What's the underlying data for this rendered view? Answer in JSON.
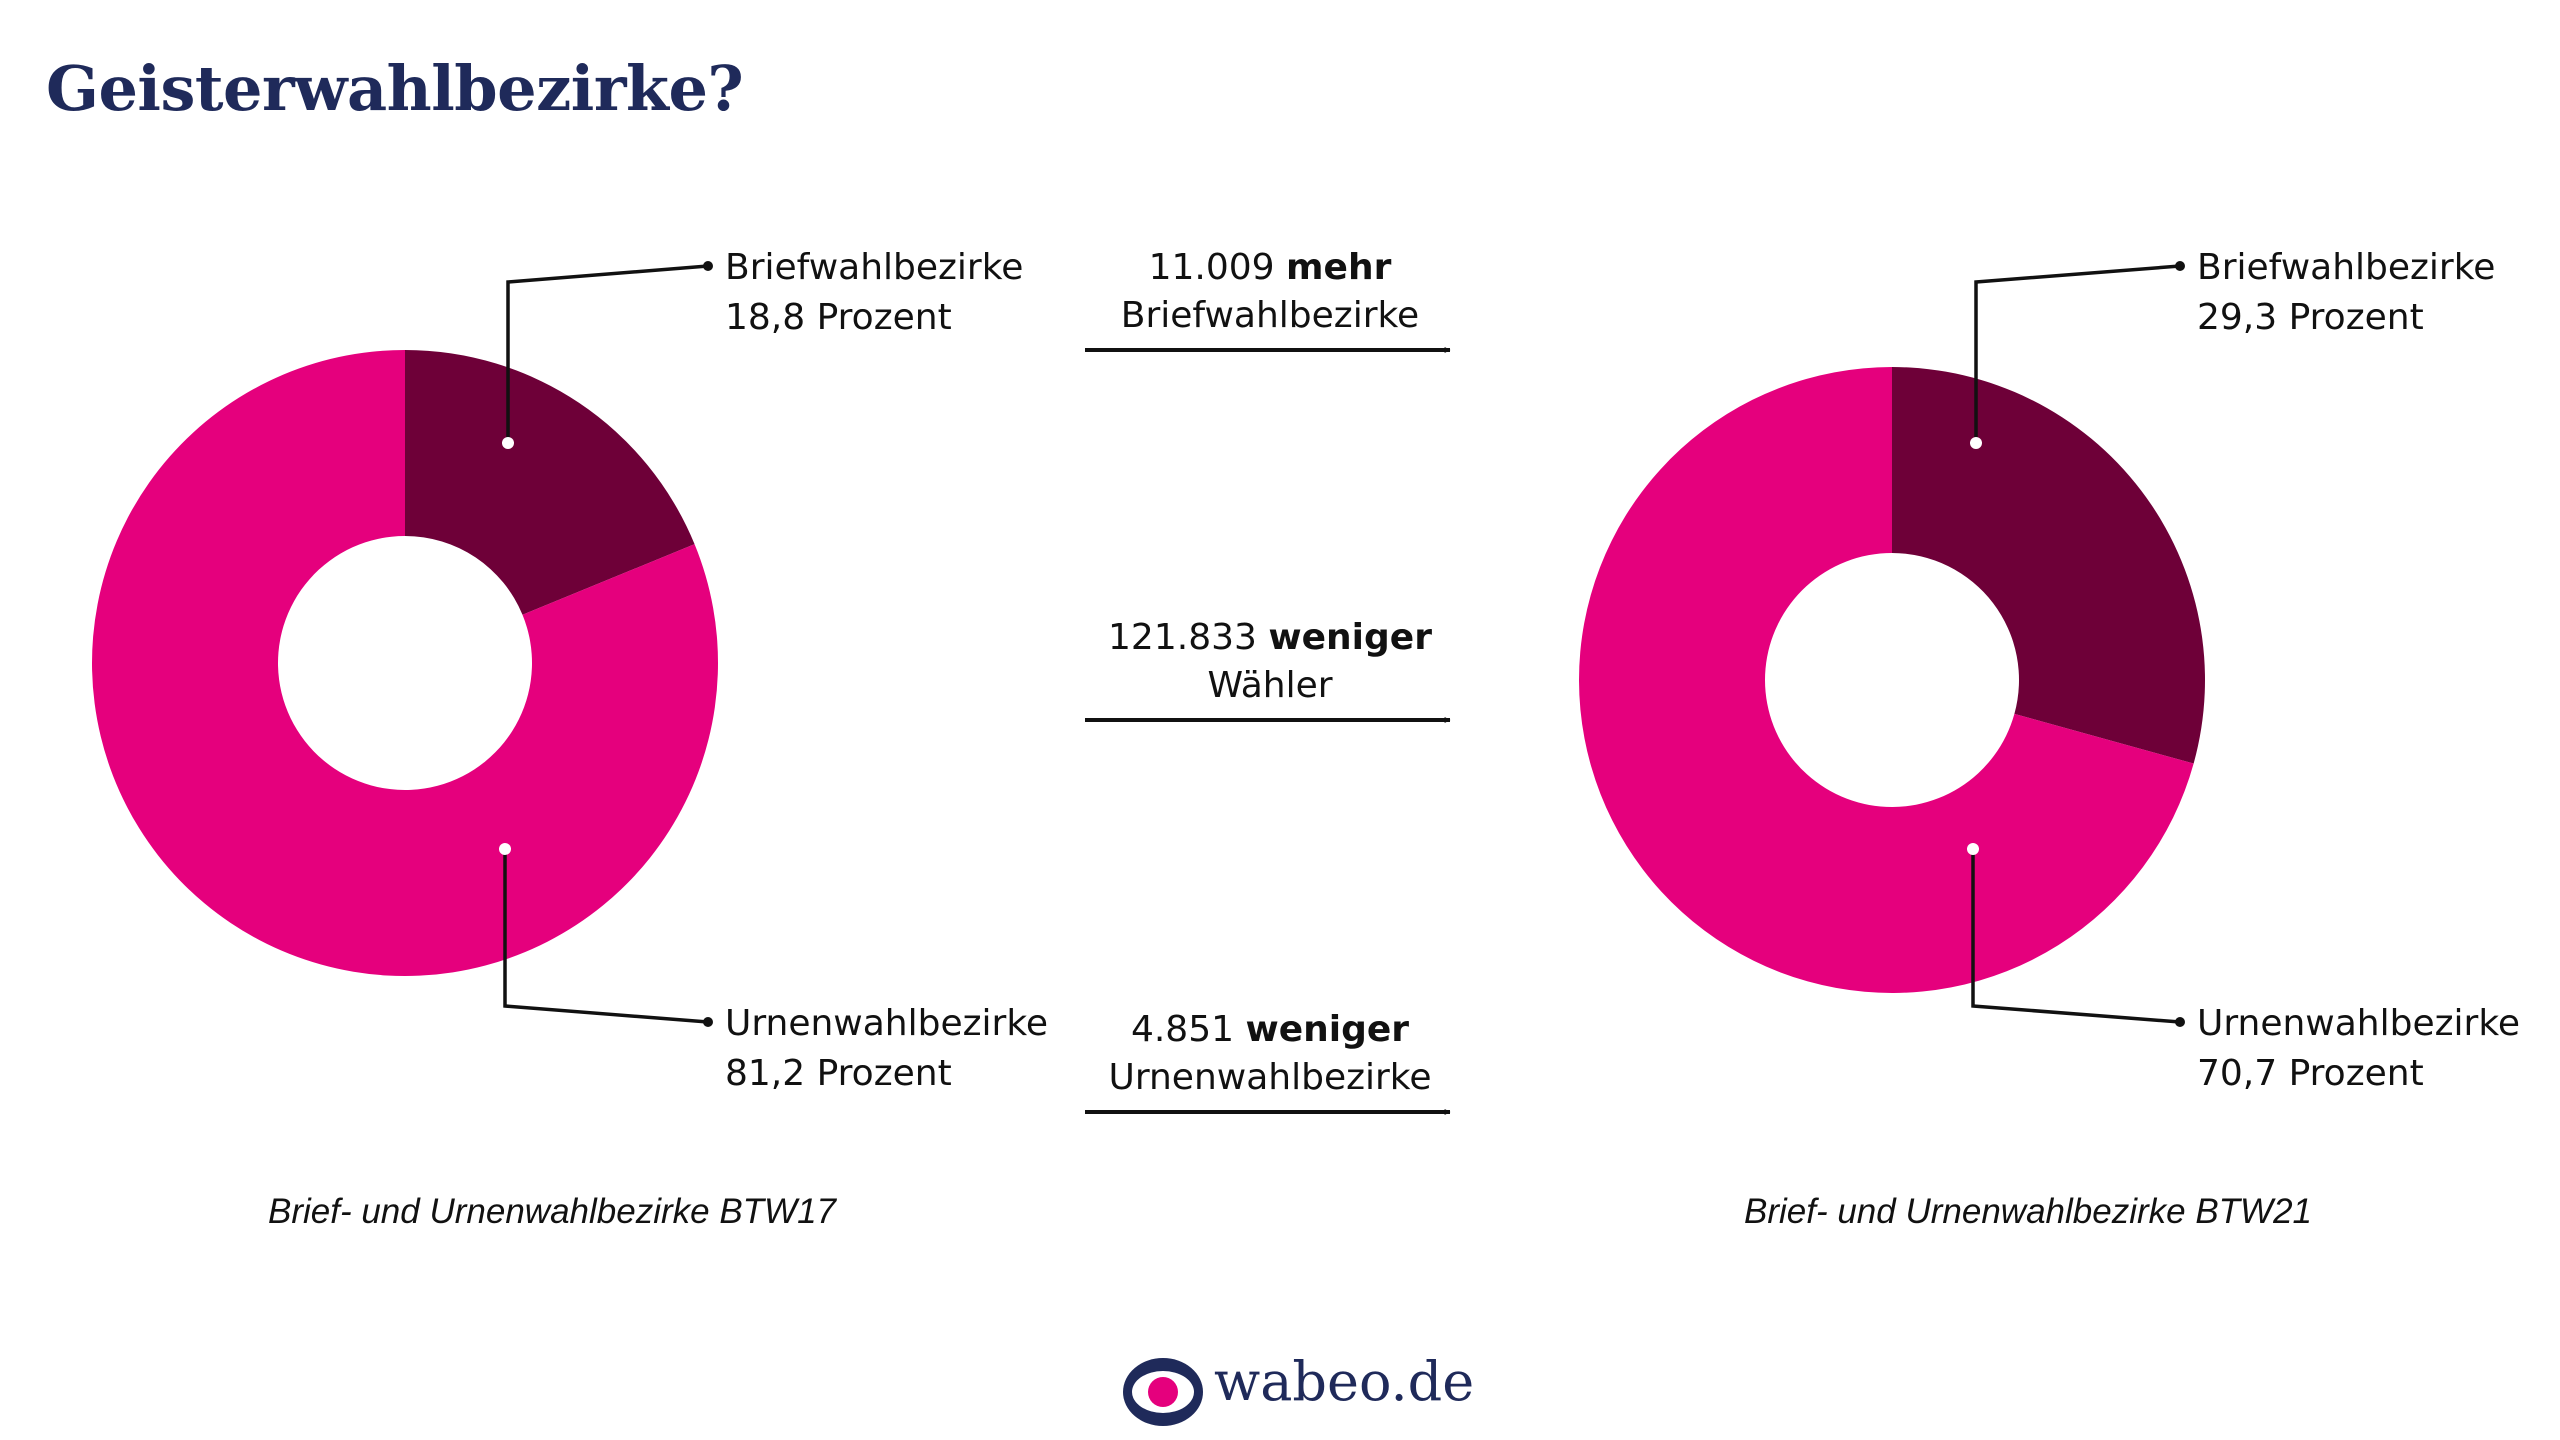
{
  "title": "Geisterwahlbezirke?",
  "colors": {
    "brief": "#6e0038",
    "urne": "#e5007d",
    "title": "#1f2a5a",
    "line": "#111111"
  },
  "chart_data": [
    {
      "type": "pie",
      "title": "Brief- und Urnenwahlbezirke BTW17",
      "categories": [
        "Briefwahlbezirke",
        "Urnenwahlbezirke"
      ],
      "values": [
        18.8,
        81.2
      ],
      "labels": [
        {
          "name": "Briefwahlbezirke",
          "value": "18,8 Prozent"
        },
        {
          "name": "Urnenwahlbezirke",
          "value": "81,2 Prozent"
        }
      ]
    },
    {
      "type": "pie",
      "title": "Brief- und Urnenwahlbezirke BTW21",
      "categories": [
        "Briefwahlbezirke",
        "Urnenwahlbezirke"
      ],
      "values": [
        29.3,
        70.7
      ],
      "labels": [
        {
          "name": "Briefwahlbezirke",
          "value": "29,3 Prozent"
        },
        {
          "name": "Urnenwahlbezirke",
          "value": "70,7 Prozent"
        }
      ]
    }
  ],
  "changes": [
    {
      "number": "11.009",
      "direction": "mehr",
      "subject": "Briefwahlbezirke"
    },
    {
      "number": "121.833",
      "direction": "weniger",
      "subject": "Wähler"
    },
    {
      "number": "4.851",
      "direction": "weniger",
      "subject": "Urnenwahlbezirke"
    }
  ],
  "brand": {
    "name": "wabeo.de",
    "icon": "eye-logo-icon"
  }
}
